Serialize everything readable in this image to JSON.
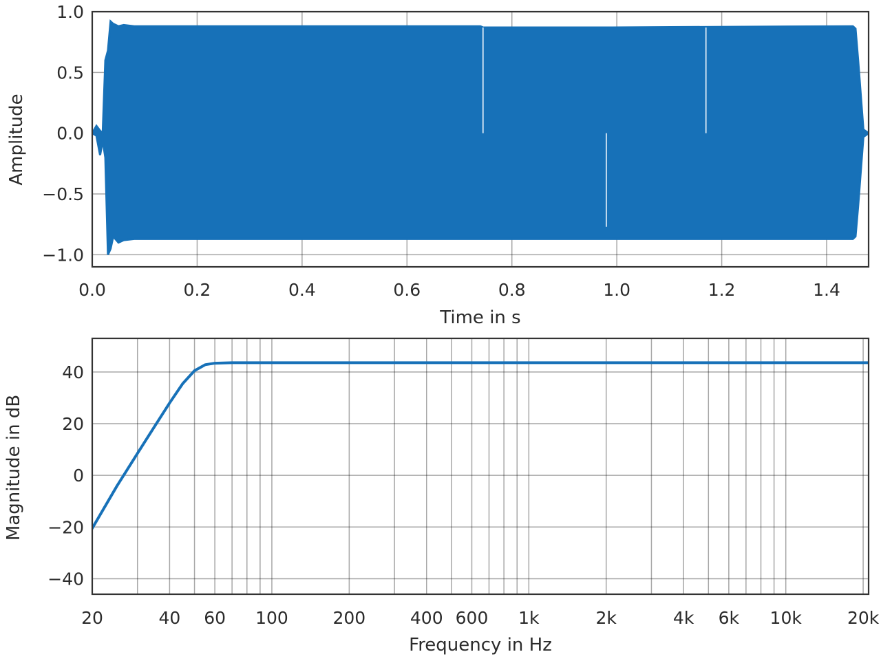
{
  "chart_data": [
    {
      "type": "line",
      "title": "",
      "xlabel": "Time in s",
      "ylabel": "Amplitude",
      "xlim": [
        0.0,
        1.48
      ],
      "ylim": [
        -1.1,
        1.0
      ],
      "xticks": [
        0.0,
        0.2,
        0.4,
        0.6,
        0.8,
        1.0,
        1.2,
        1.4
      ],
      "xtick_labels": [
        "0.0",
        "0.2",
        "0.4",
        "0.6",
        "0.8",
        "1.0",
        "1.2",
        "1.4"
      ],
      "yticks": [
        1.0,
        0.5,
        0.0,
        -0.5,
        -1.0
      ],
      "ytick_labels": [
        "1.0",
        "0.5",
        "0.0",
        "−0.5",
        "−1.0"
      ],
      "grid": true,
      "series": [
        {
          "color": "#1771b8",
          "envelope": {
            "t": [
              0.0,
              0.008,
              0.015,
              0.02,
              0.025,
              0.03,
              0.035,
              0.04,
              0.05,
              0.06,
              0.08,
              0.74,
              0.745,
              0.98,
              0.985,
              1.45,
              1.455,
              1.46,
              1.47,
              1.48
            ],
            "upper": [
              0.0,
              0.06,
              0.02,
              0.0,
              0.6,
              0.68,
              0.92,
              0.9,
              0.88,
              0.89,
              0.88,
              0.88,
              0.87,
              0.87,
              0.87,
              0.88,
              0.86,
              0.6,
              0.03,
              0.0
            ],
            "lower": [
              0.0,
              -0.02,
              -0.18,
              -0.06,
              -0.2,
              -1.0,
              -0.95,
              -0.85,
              -0.9,
              -0.88,
              -0.87,
              -0.87,
              -0.87,
              -0.87,
              -0.87,
              -0.87,
              -0.85,
              -0.6,
              -0.03,
              0.0
            ]
          },
          "spikes": [
            {
              "t": 0.745,
              "value": 0.87
            },
            {
              "t": 0.98,
              "value": -0.77
            },
            {
              "t": 1.17,
              "value": 0.87
            }
          ]
        }
      ]
    },
    {
      "type": "line",
      "title": "",
      "xlabel": "Frequency in Hz",
      "ylabel": "Magnitude in dB",
      "xscale": "log",
      "xlim": [
        20,
        21000
      ],
      "ylim": [
        -46,
        53
      ],
      "xticks": [
        20,
        40,
        60,
        100,
        200,
        400,
        600,
        1000,
        2000,
        4000,
        6000,
        10000,
        20000
      ],
      "xtick_labels": [
        "20",
        "40",
        "60",
        "100",
        "200",
        "400",
        "600",
        "1k",
        "2k",
        "4k",
        "6k",
        "10k",
        "20k"
      ],
      "x_gridlines": [
        20,
        30,
        40,
        50,
        60,
        70,
        80,
        90,
        100,
        200,
        300,
        400,
        500,
        600,
        700,
        800,
        900,
        1000,
        2000,
        3000,
        4000,
        5000,
        6000,
        7000,
        8000,
        9000,
        10000,
        20000
      ],
      "yticks": [
        40,
        20,
        0,
        -20,
        -40
      ],
      "ytick_labels": [
        "40",
        "20",
        "0",
        "−20",
        "−40"
      ],
      "grid": true,
      "series": [
        {
          "color": "#1771b8",
          "x": [
            20,
            25,
            30,
            35,
            40,
            45,
            50,
            55,
            60,
            70,
            80,
            100,
            200,
            1000,
            10000,
            21000
          ],
          "y": [
            -20.5,
            -4,
            8.5,
            19,
            28,
            35.5,
            40.5,
            42.8,
            43.4,
            43.6,
            43.6,
            43.6,
            43.6,
            43.6,
            43.6,
            43.6
          ]
        }
      ]
    }
  ]
}
